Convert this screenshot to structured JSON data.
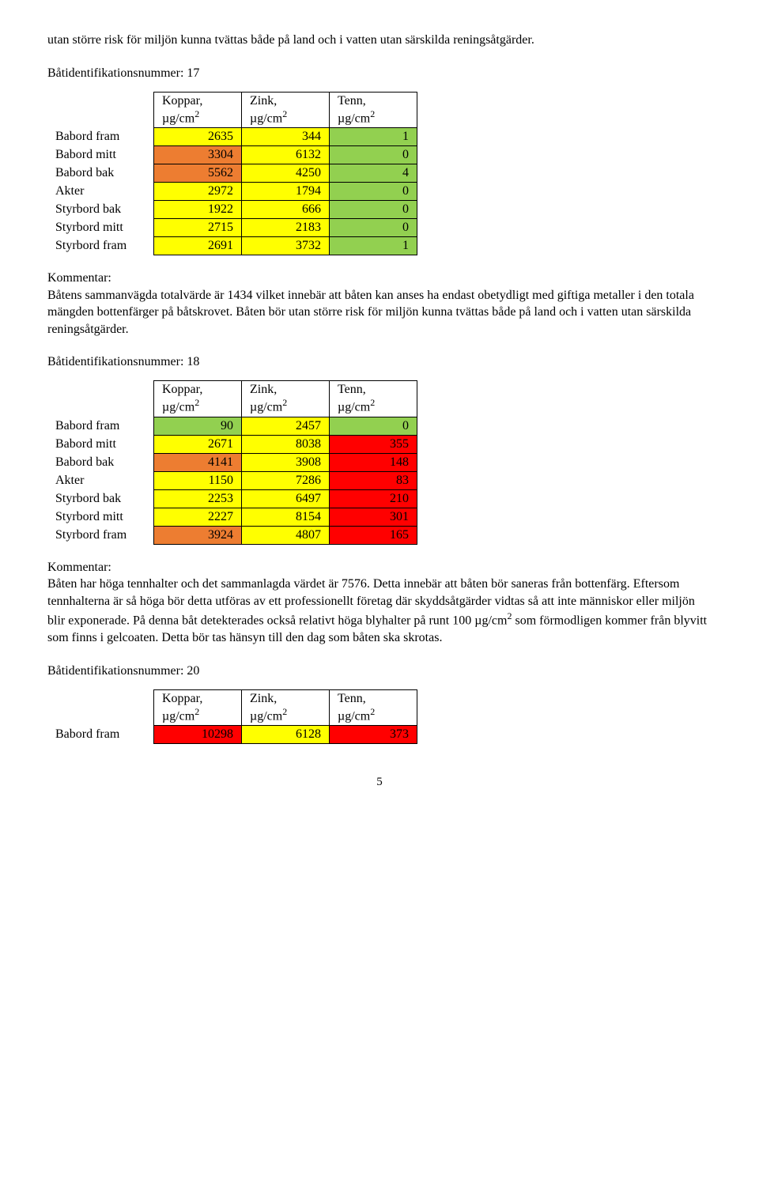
{
  "intro_para": "utan större risk för miljön kunna tvättas både på land och i vatten utan särskilda reningsåtgärder.",
  "headers": {
    "koppar_line1": "Koppar,",
    "zink_line1": "Zink,",
    "tenn_line1": "Tenn,",
    "unit": "µg/cm"
  },
  "section17": {
    "title": "Båtidentifikationsnummer: 17",
    "rows": [
      {
        "label": "Babord fram",
        "k": 2635,
        "z": 344,
        "t": 1,
        "kc": "#ffff00",
        "zc": "#ffff00",
        "tc": "#92d050"
      },
      {
        "label": "Babord mitt",
        "k": 3304,
        "z": 6132,
        "t": 0,
        "kc": "#ed7d31",
        "zc": "#ffff00",
        "tc": "#92d050"
      },
      {
        "label": "Babord bak",
        "k": 5562,
        "z": 4250,
        "t": 4,
        "kc": "#ed7d31",
        "zc": "#ffff00",
        "tc": "#92d050"
      },
      {
        "label": "Akter",
        "k": 2972,
        "z": 1794,
        "t": 0,
        "kc": "#ffff00",
        "zc": "#ffff00",
        "tc": "#92d050"
      },
      {
        "label": "Styrbord bak",
        "k": 1922,
        "z": 666,
        "t": 0,
        "kc": "#ffff00",
        "zc": "#ffff00",
        "tc": "#92d050"
      },
      {
        "label": "Styrbord mitt",
        "k": 2715,
        "z": 2183,
        "t": 0,
        "kc": "#ffff00",
        "zc": "#ffff00",
        "tc": "#92d050"
      },
      {
        "label": "Styrbord fram",
        "k": 2691,
        "z": 3732,
        "t": 1,
        "kc": "#ffff00",
        "zc": "#ffff00",
        "tc": "#92d050"
      }
    ],
    "kommentar_label": "Kommentar:",
    "kommentar_text": "Båtens sammanvägda totalvärde är 1434 vilket innebär att båten kan anses ha endast obetydligt med giftiga metaller i den totala mängden bottenfärger på båtskrovet. Båten bör utan större risk för miljön kunna tvättas både på land och i vatten utan särskilda reningsåtgärder."
  },
  "section18": {
    "title": "Båtidentifikationsnummer: 18",
    "rows": [
      {
        "label": "Babord fram",
        "k": 90,
        "z": 2457,
        "t": 0,
        "kc": "#92d050",
        "zc": "#ffff00",
        "tc": "#92d050"
      },
      {
        "label": "Babord mitt",
        "k": 2671,
        "z": 8038,
        "t": 355,
        "kc": "#ffff00",
        "zc": "#ffff00",
        "tc": "#ff0000"
      },
      {
        "label": "Babord bak",
        "k": 4141,
        "z": 3908,
        "t": 148,
        "kc": "#ed7d31",
        "zc": "#ffff00",
        "tc": "#ff0000"
      },
      {
        "label": "Akter",
        "k": 1150,
        "z": 7286,
        "t": 83,
        "kc": "#ffff00",
        "zc": "#ffff00",
        "tc": "#ff0000"
      },
      {
        "label": "Styrbord bak",
        "k": 2253,
        "z": 6497,
        "t": 210,
        "kc": "#ffff00",
        "zc": "#ffff00",
        "tc": "#ff0000"
      },
      {
        "label": "Styrbord mitt",
        "k": 2227,
        "z": 8154,
        "t": 301,
        "kc": "#ffff00",
        "zc": "#ffff00",
        "tc": "#ff0000"
      },
      {
        "label": "Styrbord fram",
        "k": 3924,
        "z": 4807,
        "t": 165,
        "kc": "#ed7d31",
        "zc": "#ffff00",
        "tc": "#ff0000"
      }
    ],
    "kommentar_label": "Kommentar:",
    "kommentar_text_1": "Båten har höga tennhalter och det sammanlagda värdet är 7576. Detta innebär att båten bör saneras från bottenfärg. Eftersom tennhalterna är så höga bör detta utföras av ett professionellt företag där skyddsåtgärder vidtas så att inte människor eller miljön blir exponerade. På denna båt detekterades också relativt höga blyhalter på runt 100 ",
    "kommentar_unit": "µg/cm",
    "kommentar_text_2": " som förmodligen kommer från blyvitt som finns i gelcoaten. Detta bör tas hänsyn till den dag som båten ska skrotas."
  },
  "section20": {
    "title": "Båtidentifikationsnummer: 20",
    "rows": [
      {
        "label": "Babord fram",
        "k": 10298,
        "z": 6128,
        "t": 373,
        "kc": "#ff0000",
        "zc": "#ffff00",
        "tc": "#ff0000"
      }
    ]
  },
  "page_number": "5"
}
